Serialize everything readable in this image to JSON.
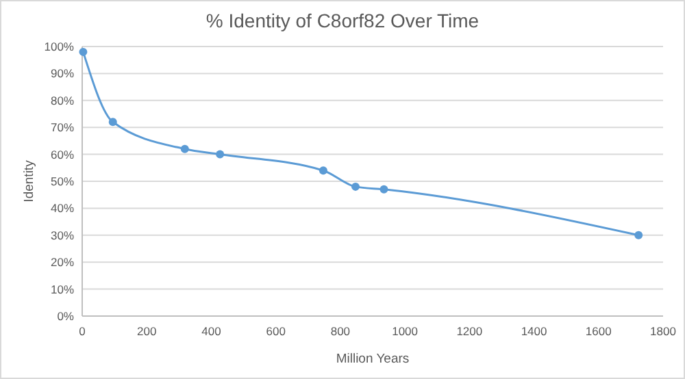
{
  "chart_data": {
    "type": "line",
    "title": "% Identity of C8orf82 Over Time",
    "xlabel": "Million Years",
    "ylabel": "Identity",
    "x": [
      3,
      95,
      318,
      427,
      747,
      847,
      935,
      1724
    ],
    "series": [
      {
        "color": "#5b9bd5",
        "values": [
          98,
          72,
          62,
          60,
          54,
          48,
          47,
          30
        ]
      }
    ],
    "xlim": [
      0,
      1800
    ],
    "xticks": [
      0,
      200,
      400,
      600,
      800,
      1000,
      1200,
      1400,
      1600,
      1800
    ],
    "ylim": [
      0,
      100
    ],
    "yticks": [
      {
        "value": 0,
        "label": "0%"
      },
      {
        "value": 10,
        "label": "10%"
      },
      {
        "value": 20,
        "label": "20%"
      },
      {
        "value": 30,
        "label": "30%"
      },
      {
        "value": 40,
        "label": "40%"
      },
      {
        "value": 50,
        "label": "50%"
      },
      {
        "value": 60,
        "label": "60%"
      },
      {
        "value": 70,
        "label": "70%"
      },
      {
        "value": 80,
        "label": "80%"
      },
      {
        "value": 90,
        "label": "90%"
      },
      {
        "value": 100,
        "label": "100%"
      }
    ],
    "grid": "y",
    "marker": "circle",
    "line_style": "solid"
  }
}
